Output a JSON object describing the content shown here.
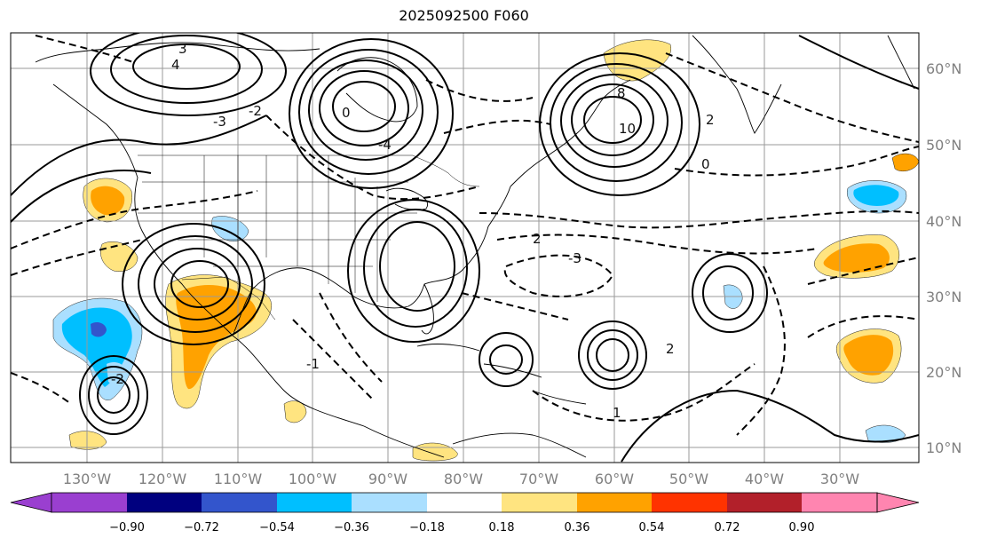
{
  "title": "2025092500 F060",
  "lon_ticks": [
    "130°W",
    "120°W",
    "110°W",
    "100°W",
    "90°W",
    "80°W",
    "70°W",
    "60°W",
    "50°W",
    "40°W",
    "30°W"
  ],
  "lat_ticks": [
    "60°N",
    "50°N",
    "40°N",
    "30°N",
    "20°N",
    "10°N"
  ],
  "colorbar": {
    "labels": [
      "−0.90",
      "−0.72",
      "−0.54",
      "−0.36",
      "−0.18",
      "0.18",
      "0.36",
      "0.54",
      "0.72",
      "0.90"
    ],
    "colors": [
      "#9a3fd0",
      "#00007f",
      "#3355cc",
      "#00bfff",
      "#aadfff",
      "#ffffff",
      "#ffe480",
      "#ffa200",
      "#ff3300",
      "#b2202a",
      "#ff85b0"
    ]
  },
  "contour_labels": [
    "3",
    "4",
    "-3",
    "-2",
    "0",
    "-4",
    "8",
    "10",
    "2",
    "-1",
    "1",
    "-3",
    "2",
    "-2",
    "2",
    "0"
  ]
}
